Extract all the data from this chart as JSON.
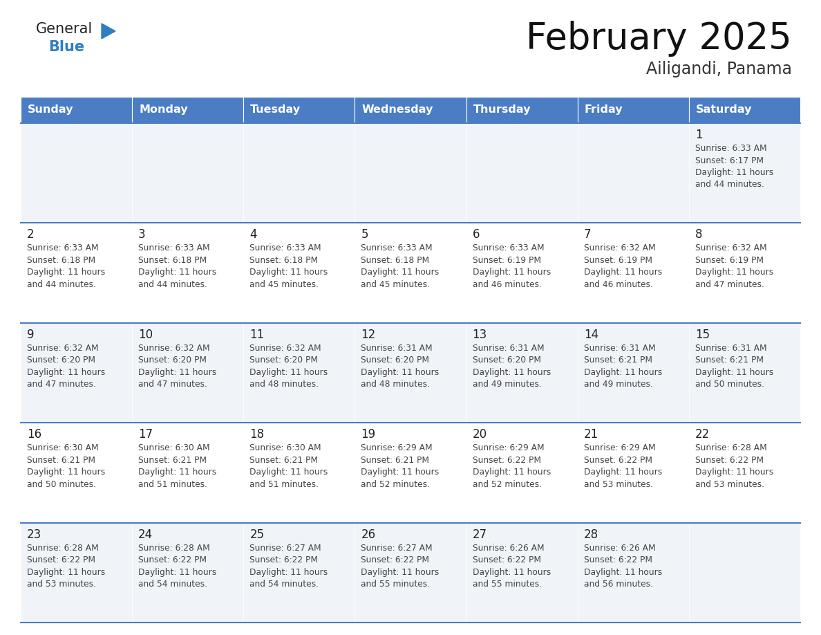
{
  "title": "February 2025",
  "subtitle": "Ailigandi, Panama",
  "days_of_week": [
    "Sunday",
    "Monday",
    "Tuesday",
    "Wednesday",
    "Thursday",
    "Friday",
    "Saturday"
  ],
  "header_bg": "#4a7dc4",
  "header_text_color": "#FFFFFF",
  "cell_bg_odd": "#f0f4f8",
  "cell_bg_even": "#FFFFFF",
  "cell_border_color": "#4a7dc4",
  "day_number_color": "#222222",
  "cell_text_color": "#444444",
  "title_color": "#111111",
  "subtitle_color": "#333333",
  "logo_general_color": "#222222",
  "logo_blue_color": "#2f7ec0",
  "calendar_data": [
    {
      "day": 1,
      "col": 6,
      "row": 0,
      "sunrise": "6:33 AM",
      "sunset": "6:17 PM",
      "daylight_hours": 11,
      "daylight_minutes": 44
    },
    {
      "day": 2,
      "col": 0,
      "row": 1,
      "sunrise": "6:33 AM",
      "sunset": "6:18 PM",
      "daylight_hours": 11,
      "daylight_minutes": 44
    },
    {
      "day": 3,
      "col": 1,
      "row": 1,
      "sunrise": "6:33 AM",
      "sunset": "6:18 PM",
      "daylight_hours": 11,
      "daylight_minutes": 44
    },
    {
      "day": 4,
      "col": 2,
      "row": 1,
      "sunrise": "6:33 AM",
      "sunset": "6:18 PM",
      "daylight_hours": 11,
      "daylight_minutes": 45
    },
    {
      "day": 5,
      "col": 3,
      "row": 1,
      "sunrise": "6:33 AM",
      "sunset": "6:18 PM",
      "daylight_hours": 11,
      "daylight_minutes": 45
    },
    {
      "day": 6,
      "col": 4,
      "row": 1,
      "sunrise": "6:33 AM",
      "sunset": "6:19 PM",
      "daylight_hours": 11,
      "daylight_minutes": 46
    },
    {
      "day": 7,
      "col": 5,
      "row": 1,
      "sunrise": "6:32 AM",
      "sunset": "6:19 PM",
      "daylight_hours": 11,
      "daylight_minutes": 46
    },
    {
      "day": 8,
      "col": 6,
      "row": 1,
      "sunrise": "6:32 AM",
      "sunset": "6:19 PM",
      "daylight_hours": 11,
      "daylight_minutes": 47
    },
    {
      "day": 9,
      "col": 0,
      "row": 2,
      "sunrise": "6:32 AM",
      "sunset": "6:20 PM",
      "daylight_hours": 11,
      "daylight_minutes": 47
    },
    {
      "day": 10,
      "col": 1,
      "row": 2,
      "sunrise": "6:32 AM",
      "sunset": "6:20 PM",
      "daylight_hours": 11,
      "daylight_minutes": 47
    },
    {
      "day": 11,
      "col": 2,
      "row": 2,
      "sunrise": "6:32 AM",
      "sunset": "6:20 PM",
      "daylight_hours": 11,
      "daylight_minutes": 48
    },
    {
      "day": 12,
      "col": 3,
      "row": 2,
      "sunrise": "6:31 AM",
      "sunset": "6:20 PM",
      "daylight_hours": 11,
      "daylight_minutes": 48
    },
    {
      "day": 13,
      "col": 4,
      "row": 2,
      "sunrise": "6:31 AM",
      "sunset": "6:20 PM",
      "daylight_hours": 11,
      "daylight_minutes": 49
    },
    {
      "day": 14,
      "col": 5,
      "row": 2,
      "sunrise": "6:31 AM",
      "sunset": "6:21 PM",
      "daylight_hours": 11,
      "daylight_minutes": 49
    },
    {
      "day": 15,
      "col": 6,
      "row": 2,
      "sunrise": "6:31 AM",
      "sunset": "6:21 PM",
      "daylight_hours": 11,
      "daylight_minutes": 50
    },
    {
      "day": 16,
      "col": 0,
      "row": 3,
      "sunrise": "6:30 AM",
      "sunset": "6:21 PM",
      "daylight_hours": 11,
      "daylight_minutes": 50
    },
    {
      "day": 17,
      "col": 1,
      "row": 3,
      "sunrise": "6:30 AM",
      "sunset": "6:21 PM",
      "daylight_hours": 11,
      "daylight_minutes": 51
    },
    {
      "day": 18,
      "col": 2,
      "row": 3,
      "sunrise": "6:30 AM",
      "sunset": "6:21 PM",
      "daylight_hours": 11,
      "daylight_minutes": 51
    },
    {
      "day": 19,
      "col": 3,
      "row": 3,
      "sunrise": "6:29 AM",
      "sunset": "6:21 PM",
      "daylight_hours": 11,
      "daylight_minutes": 52
    },
    {
      "day": 20,
      "col": 4,
      "row": 3,
      "sunrise": "6:29 AM",
      "sunset": "6:22 PM",
      "daylight_hours": 11,
      "daylight_minutes": 52
    },
    {
      "day": 21,
      "col": 5,
      "row": 3,
      "sunrise": "6:29 AM",
      "sunset": "6:22 PM",
      "daylight_hours": 11,
      "daylight_minutes": 53
    },
    {
      "day": 22,
      "col": 6,
      "row": 3,
      "sunrise": "6:28 AM",
      "sunset": "6:22 PM",
      "daylight_hours": 11,
      "daylight_minutes": 53
    },
    {
      "day": 23,
      "col": 0,
      "row": 4,
      "sunrise": "6:28 AM",
      "sunset": "6:22 PM",
      "daylight_hours": 11,
      "daylight_minutes": 53
    },
    {
      "day": 24,
      "col": 1,
      "row": 4,
      "sunrise": "6:28 AM",
      "sunset": "6:22 PM",
      "daylight_hours": 11,
      "daylight_minutes": 54
    },
    {
      "day": 25,
      "col": 2,
      "row": 4,
      "sunrise": "6:27 AM",
      "sunset": "6:22 PM",
      "daylight_hours": 11,
      "daylight_minutes": 54
    },
    {
      "day": 26,
      "col": 3,
      "row": 4,
      "sunrise": "6:27 AM",
      "sunset": "6:22 PM",
      "daylight_hours": 11,
      "daylight_minutes": 55
    },
    {
      "day": 27,
      "col": 4,
      "row": 4,
      "sunrise": "6:26 AM",
      "sunset": "6:22 PM",
      "daylight_hours": 11,
      "daylight_minutes": 55
    },
    {
      "day": 28,
      "col": 5,
      "row": 4,
      "sunrise": "6:26 AM",
      "sunset": "6:22 PM",
      "daylight_hours": 11,
      "daylight_minutes": 56
    }
  ]
}
